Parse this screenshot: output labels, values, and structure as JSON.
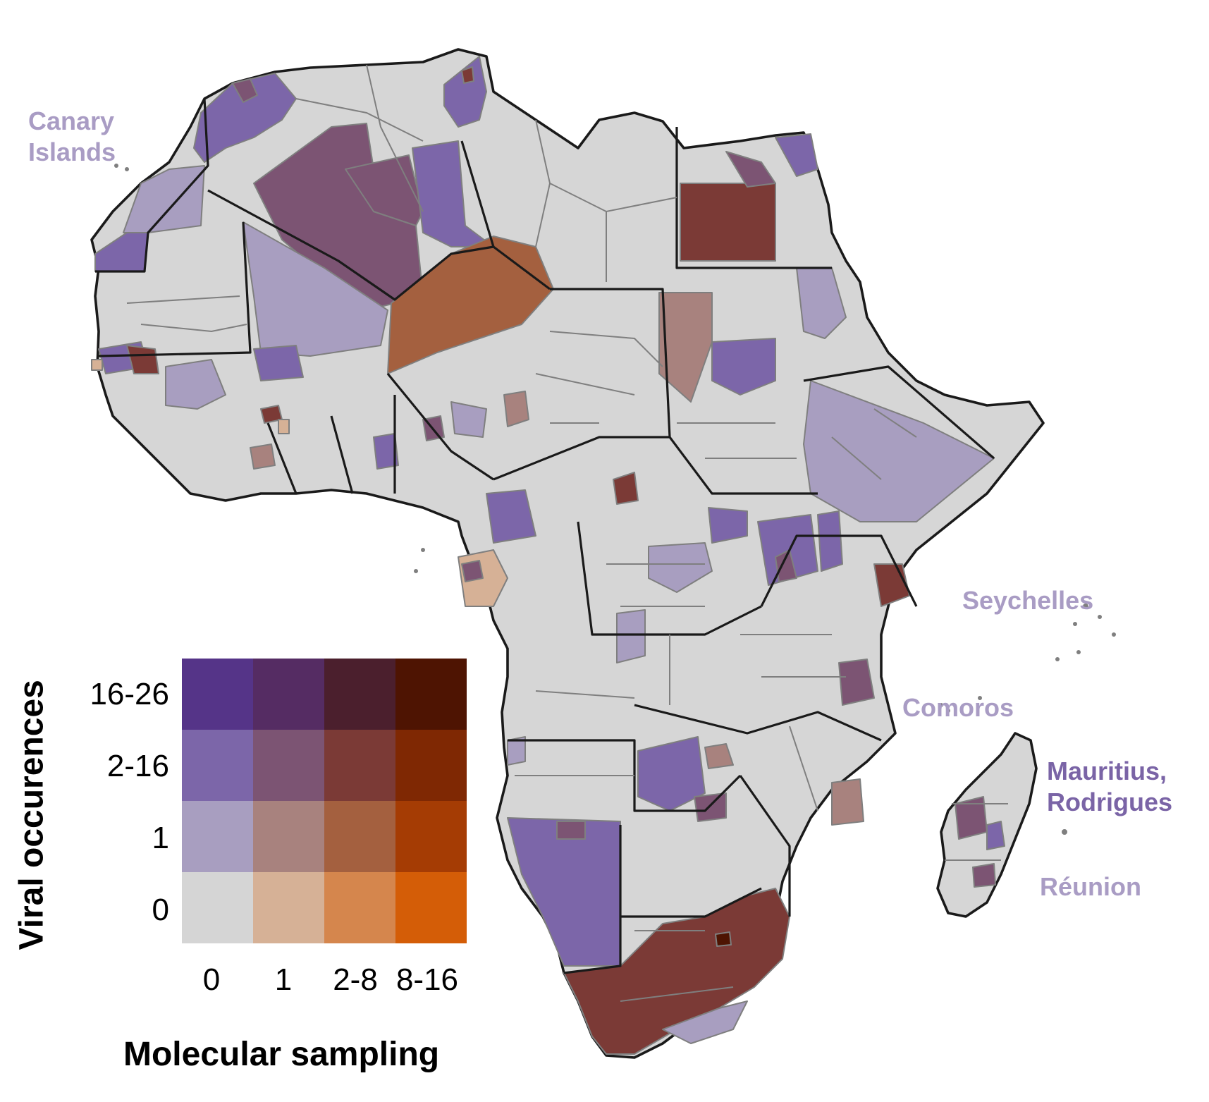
{
  "map": {
    "description_labels": {
      "canary": "Canary\nIslands",
      "seychelles": "Seychelles",
      "comoros": "Comoros",
      "mauritius": "Mauritius,\nRodrigues",
      "reunion": "Réunion"
    },
    "label_colors": {
      "canary": "#a99cc4",
      "seychelles": "#a99cc4",
      "comoros": "#a99cc4",
      "mauritius": "#7a64a6",
      "reunion": "#a99cc4"
    }
  },
  "legend": {
    "y_title": "Viral occurences",
    "x_title": "Molecular sampling",
    "y_categories": [
      "16-26",
      "2-16",
      "1",
      "0"
    ],
    "x_categories": [
      "0",
      "1",
      "2-8",
      "8-16"
    ],
    "grid_colors": [
      [
        "#553488",
        "#552c63",
        "#4b1f2d",
        "#4e1402"
      ],
      [
        "#7c66a9",
        "#7c5473",
        "#7b3a36",
        "#7f2803"
      ],
      [
        "#a89ec0",
        "#a8827e",
        "#a4603f",
        "#a53c04"
      ],
      [
        "#d5d5d5",
        "#d6b196",
        "#d5864d",
        "#d45d07"
      ]
    ]
  },
  "colors": {
    "land": "#d6d6d6",
    "border": "#7f7f7f",
    "coast": "#1a1a1a"
  }
}
